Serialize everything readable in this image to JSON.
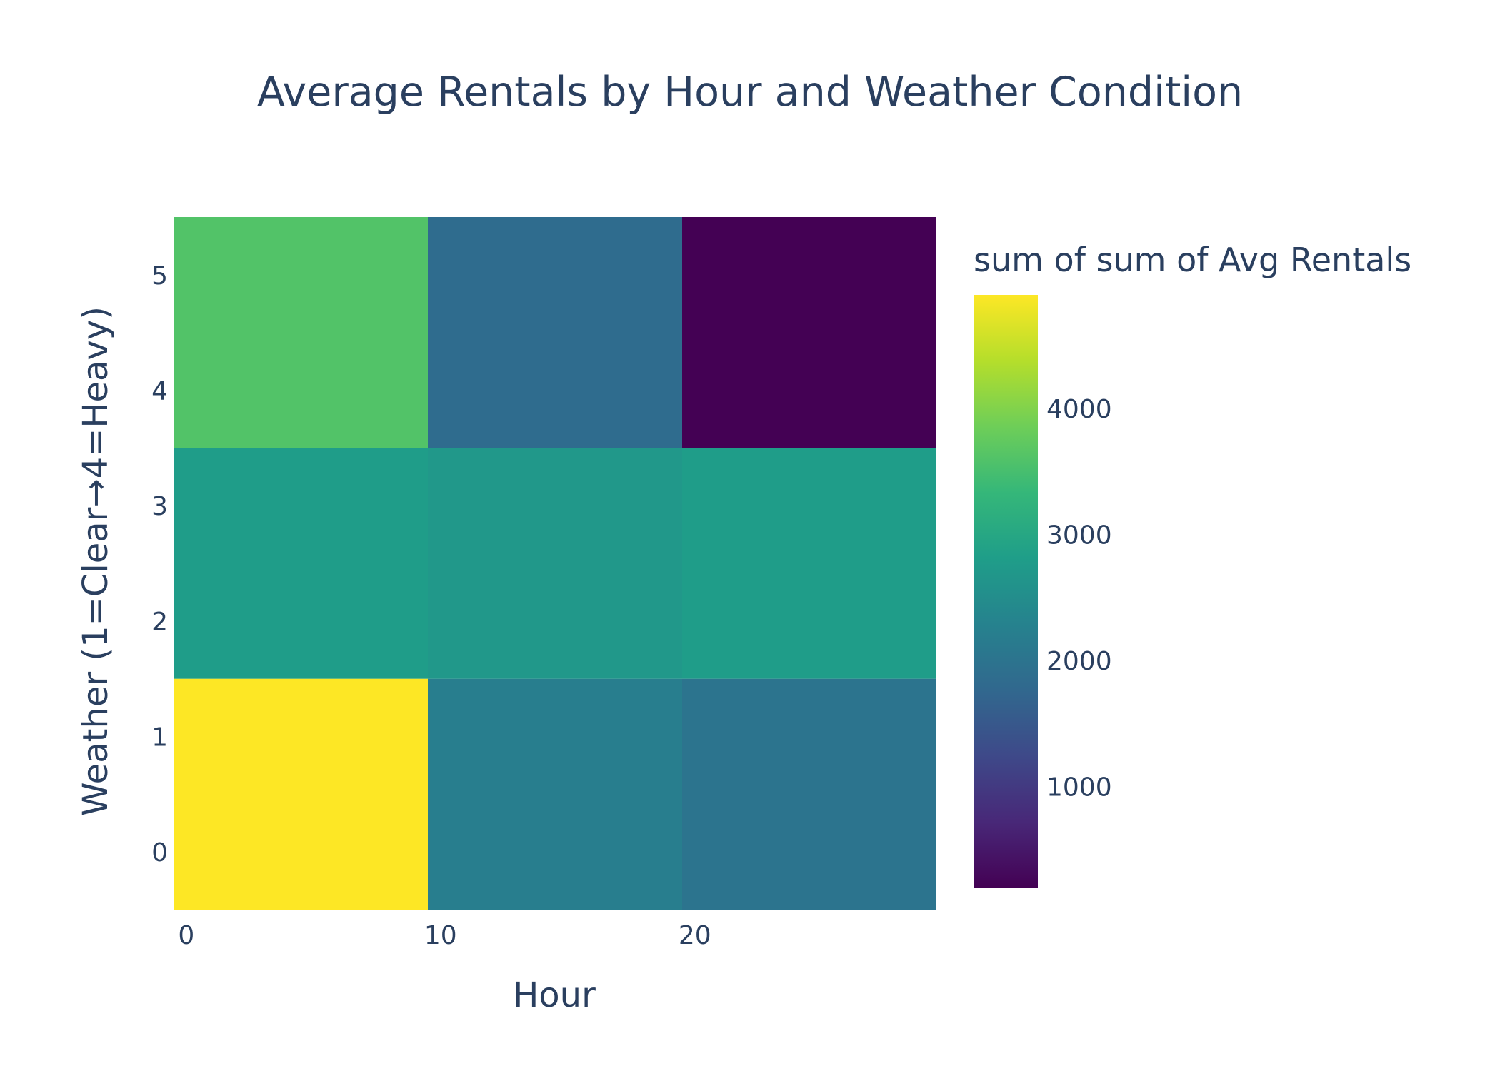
{
  "chart_data": {
    "type": "heatmap",
    "title": "Average Rentals by Hour and Weather Condition",
    "xlabel": "Hour",
    "ylabel": "Weather (1=Clear→4=Heavy)",
    "xlim": [
      -0.5,
      29.5
    ],
    "ylim": [
      -0.5,
      5.5
    ],
    "x_ticks": [
      0,
      10,
      20
    ],
    "x_tick_labels": [
      "0",
      "10",
      "20"
    ],
    "y_ticks": [
      0,
      1,
      2,
      3,
      4,
      5
    ],
    "y_tick_labels": [
      "0",
      "1",
      "2",
      "3",
      "4",
      "5"
    ],
    "x_bins": [
      [
        -0.5,
        9.5
      ],
      [
        9.5,
        19.5
      ],
      [
        19.5,
        29.5
      ]
    ],
    "y_bins": [
      [
        -0.5,
        1.5
      ],
      [
        1.5,
        3.5
      ],
      [
        3.5,
        5.5
      ]
    ],
    "z": [
      [
        4900,
        2200,
        2000
      ],
      [
        2800,
        2700,
        2800
      ],
      [
        3600,
        1850,
        200
      ]
    ],
    "colorscale": "viridis",
    "colorbar": {
      "title": "sum of sum of Avg Rentals",
      "zmin": 200,
      "zmax": 4900,
      "ticks": [
        1000,
        2000,
        3000,
        4000
      ],
      "tick_labels": [
        "1000",
        "2000",
        "3000",
        "4000"
      ]
    },
    "grid": false
  }
}
